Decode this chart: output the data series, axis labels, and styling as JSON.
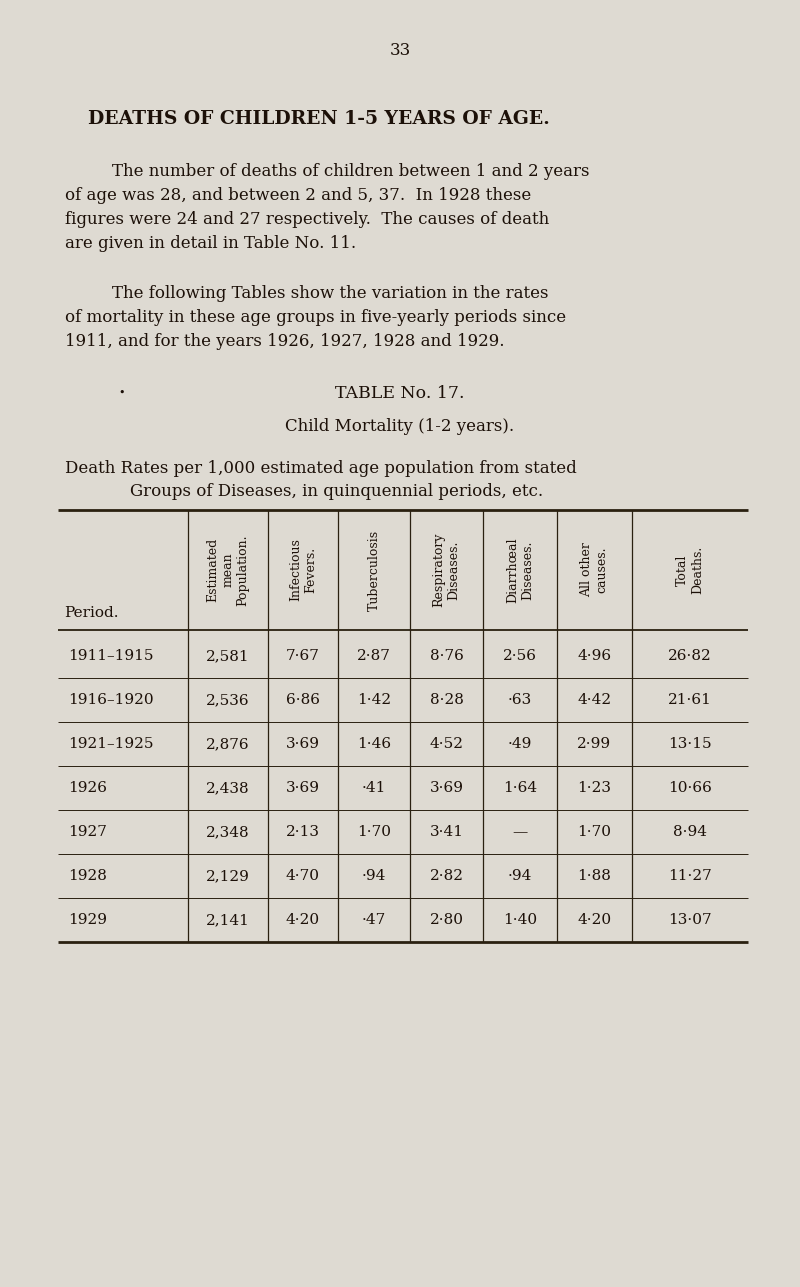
{
  "page_number": "33",
  "bg_color": "#dedad2",
  "title": "DEATHS OF CHILDREN 1-5 YEARS OF AGE.",
  "lines_p1": [
    "The number of deaths of children between 1 and 2 years",
    "of age was 28, and between 2 and 5, 37.  In 1928 these",
    "figures were 24 and 27 respectively.  The causes of death",
    "are given in detail in Table No. 11."
  ],
  "lines_p2": [
    "The following Tables show the variation in the rates",
    "of mortality in these age groups in five-yearly periods since",
    "1911, and for the years 1926, 1927, 1928 and 1929."
  ],
  "table_title1": "TABLE No. 17.",
  "table_title2": "Child Mortality (1-2 years).",
  "table_subtitle1": "Death Rates per 1,000 estimated age population from stated",
  "table_subtitle2": "Groups of Diseases, in quinquennial periods, etc.",
  "col_headers": [
    "Estimated\nmean\nPopulation.",
    "Infectious\nFevers.",
    "Tuberculosis",
    "Respiratory\nDiseases.",
    "Diarrhœal\nDiseases.",
    "All other\ncauses.",
    "Total\nDeaths."
  ],
  "row_header": "Period.",
  "rows": [
    [
      "1911–1915",
      "2,581",
      "7·67",
      "2·87",
      "8·76",
      "2·56",
      "4·96",
      "26·82"
    ],
    [
      "1916–1920",
      "2,536",
      "6·86",
      "1·42",
      "8·28",
      "·63",
      "4·42",
      "21·61"
    ],
    [
      "1921–1925",
      "2,876",
      "3·69",
      "1·46",
      "4·52",
      "·49",
      "2·99",
      "13·15"
    ],
    [
      "1926",
      "2,438",
      "3·69",
      "·41",
      "3·69",
      "1·64",
      "1·23",
      "10·66"
    ],
    [
      "1927",
      "2,348",
      "2·13",
      "1·70",
      "3·41",
      "—",
      "1·70",
      "8·94"
    ],
    [
      "1928",
      "2,129",
      "4·70",
      "·94",
      "2·82",
      "·94",
      "1·88",
      "11·27"
    ],
    [
      "1929",
      "2,141",
      "4·20",
      "·47",
      "2·80",
      "1·40",
      "4·20",
      "13·07"
    ]
  ],
  "text_color": "#1c1008",
  "table_line_color": "#2a2010",
  "figw": 8.0,
  "figh": 12.87,
  "dpi": 100
}
